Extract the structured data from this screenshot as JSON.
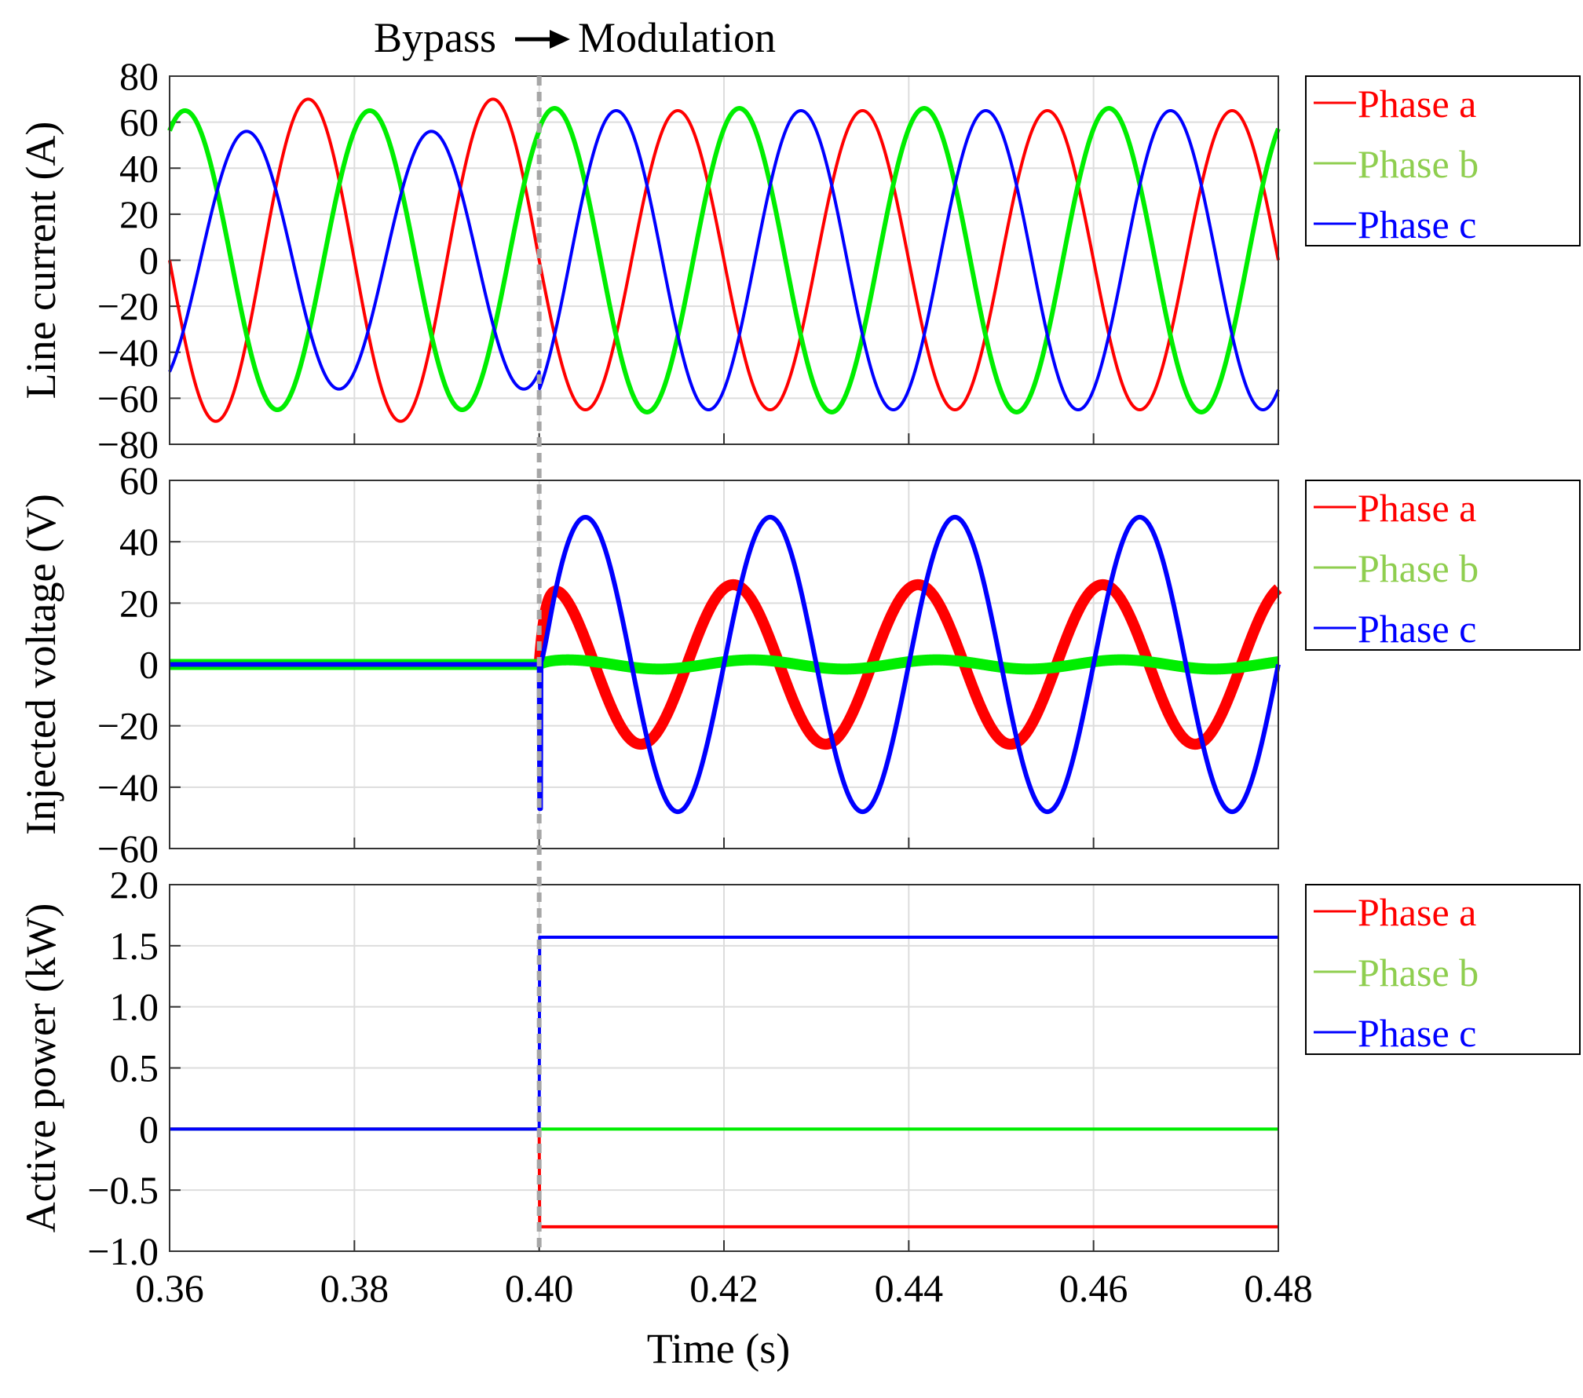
{
  "annotation": {
    "left": "Bypass",
    "right": "Modulation"
  },
  "colors": {
    "phase_a": "#ff0000",
    "phase_b": "#00ee00",
    "phase_b_legend": "#8fce4f",
    "phase_c": "#0000ff",
    "switch_line": "#a6a6a6",
    "grid": "#dddddd"
  },
  "chart_data": [
    {
      "type": "line",
      "title": "",
      "xlabel": "",
      "ylabel": "Line current (A)",
      "xlim": [
        0.36,
        0.48
      ],
      "ylim": [
        -80,
        80
      ],
      "yticks": [
        80,
        60,
        40,
        20,
        0,
        -20,
        -40,
        -60,
        -80
      ],
      "ytick_labels": [
        "80",
        "60",
        "40",
        "20",
        "0",
        "−20",
        "−40",
        "−60",
        "−80"
      ],
      "grid": true,
      "legend": "right",
      "switch_time": 0.4,
      "frequency_hz": 50,
      "series": [
        {
          "name": "Phase a",
          "color": "#ff0000",
          "amplitude_before": 70,
          "amplitude_after": 65,
          "phase_deg": 0
        },
        {
          "name": "Phase b",
          "color": "#00ee00",
          "amplitude_before": 65,
          "amplitude_after": 66,
          "phase_deg": -120
        },
        {
          "name": "Phase c",
          "color": "#0000ff",
          "amplitude_before": 56,
          "amplitude_after": 65,
          "phase_deg": 120
        }
      ]
    },
    {
      "type": "line",
      "title": "",
      "xlabel": "",
      "ylabel": "Injected voltage (V)",
      "xlim": [
        0.36,
        0.48
      ],
      "ylim": [
        -60,
        60
      ],
      "yticks": [
        60,
        40,
        20,
        0,
        -20,
        -40,
        -60
      ],
      "ytick_labels": [
        "60",
        "40",
        "20",
        "0",
        "−20",
        "−40",
        "−60"
      ],
      "grid": true,
      "legend": "right",
      "switch_time": 0.4,
      "frequency_hz": 50,
      "series": [
        {
          "name": "Phase a",
          "color": "#ff0000",
          "amplitude_before": 0,
          "amplitude_after": 26,
          "peak_times": [
            0.401,
            0.421,
            0.441,
            0.461
          ]
        },
        {
          "name": "Phase b",
          "color": "#00ee00",
          "amplitude_before": 0,
          "amplitude_after": 1.5,
          "peak_times": [
            0.403,
            0.423,
            0.443,
            0.463
          ]
        },
        {
          "name": "Phase c",
          "color": "#0000ff",
          "amplitude_before": 0,
          "amplitude_after": 48,
          "peak_times": [
            0.405,
            0.425,
            0.445,
            0.465
          ],
          "min_at_switch": -47
        }
      ]
    },
    {
      "type": "line",
      "title": "",
      "xlabel": "Time (s)",
      "ylabel": "Active power (kW)",
      "xlim": [
        0.36,
        0.48
      ],
      "ylim": [
        -1.0,
        2.0
      ],
      "xticks": [
        0.36,
        0.38,
        0.4,
        0.42,
        0.44,
        0.46,
        0.48
      ],
      "xtick_labels": [
        "0.36",
        "0.38",
        "0.40",
        "0.42",
        "0.44",
        "0.46",
        "0.48"
      ],
      "yticks": [
        2.0,
        1.5,
        1.0,
        0.5,
        0,
        -0.5,
        -1.0
      ],
      "ytick_labels": [
        "2.0",
        "1.5",
        "1.0",
        "0.5",
        "0",
        "−0.5",
        "−1.0"
      ],
      "grid": true,
      "legend": "right",
      "switch_time": 0.4,
      "series": [
        {
          "name": "Phase a",
          "color": "#ff0000",
          "before": 0,
          "after": -0.8
        },
        {
          "name": "Phase b",
          "color": "#00ee00",
          "before": 0,
          "after": 0.0
        },
        {
          "name": "Phase c",
          "color": "#0000ff",
          "before": 0,
          "after": 1.57
        }
      ]
    }
  ]
}
